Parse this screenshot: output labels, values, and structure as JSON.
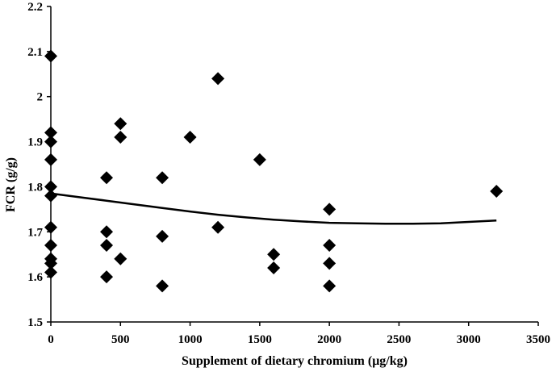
{
  "chart_data": {
    "type": "scatter",
    "title": "",
    "xlabel": "Supplement of dietary chromium (μg/kg)",
    "ylabel": "FCR (g/g)",
    "xlim": [
      0,
      3500
    ],
    "ylim": [
      1.5,
      2.2
    ],
    "xticks": [
      0,
      500,
      1000,
      1500,
      2000,
      2500,
      3000,
      3500
    ],
    "yticks": [
      1.5,
      1.6,
      1.7,
      1.8,
      1.9,
      2,
      2.1,
      2.2
    ],
    "xtick_labels": [
      "0",
      "500",
      "1000",
      "1500",
      "2000",
      "2500",
      "3000",
      "3500"
    ],
    "ytick_labels": [
      "1.5",
      "1.6",
      "1.7",
      "1.8",
      "1.9",
      "2",
      "2.1",
      "2.2"
    ],
    "grid": false,
    "legend": "none",
    "marker": "diamond",
    "marker_color": "#000000",
    "points": [
      {
        "x": 0,
        "y": 2.09
      },
      {
        "x": 0,
        "y": 1.92
      },
      {
        "x": 0,
        "y": 1.9
      },
      {
        "x": 0,
        "y": 1.86
      },
      {
        "x": 0,
        "y": 1.8
      },
      {
        "x": 0,
        "y": 1.78
      },
      {
        "x": 0,
        "y": 1.71
      },
      {
        "x": 0,
        "y": 1.67
      },
      {
        "x": 0,
        "y": 1.64
      },
      {
        "x": 0,
        "y": 1.63
      },
      {
        "x": 0,
        "y": 1.61
      },
      {
        "x": 400,
        "y": 1.82
      },
      {
        "x": 400,
        "y": 1.7
      },
      {
        "x": 400,
        "y": 1.67
      },
      {
        "x": 400,
        "y": 1.6
      },
      {
        "x": 500,
        "y": 1.94
      },
      {
        "x": 500,
        "y": 1.91
      },
      {
        "x": 500,
        "y": 1.64
      },
      {
        "x": 800,
        "y": 1.82
      },
      {
        "x": 800,
        "y": 1.69
      },
      {
        "x": 800,
        "y": 1.58
      },
      {
        "x": 1000,
        "y": 1.91
      },
      {
        "x": 1200,
        "y": 2.04
      },
      {
        "x": 1200,
        "y": 1.71
      },
      {
        "x": 1500,
        "y": 1.86
      },
      {
        "x": 1600,
        "y": 1.65
      },
      {
        "x": 1600,
        "y": 1.62
      },
      {
        "x": 2000,
        "y": 1.75
      },
      {
        "x": 2000,
        "y": 1.67
      },
      {
        "x": 2000,
        "y": 1.63
      },
      {
        "x": 2000,
        "y": 1.58
      },
      {
        "x": 3200,
        "y": 1.79
      }
    ],
    "trendline": {
      "type": "quadratic",
      "x": [
        0,
        200,
        400,
        600,
        800,
        1000,
        1200,
        1400,
        1600,
        1800,
        2000,
        2200,
        2400,
        2600,
        2800,
        3000,
        3200
      ],
      "y": [
        1.785,
        1.777,
        1.769,
        1.761,
        1.753,
        1.745,
        1.738,
        1.732,
        1.727,
        1.723,
        1.72,
        1.719,
        1.718,
        1.718,
        1.719,
        1.722,
        1.725
      ]
    }
  }
}
